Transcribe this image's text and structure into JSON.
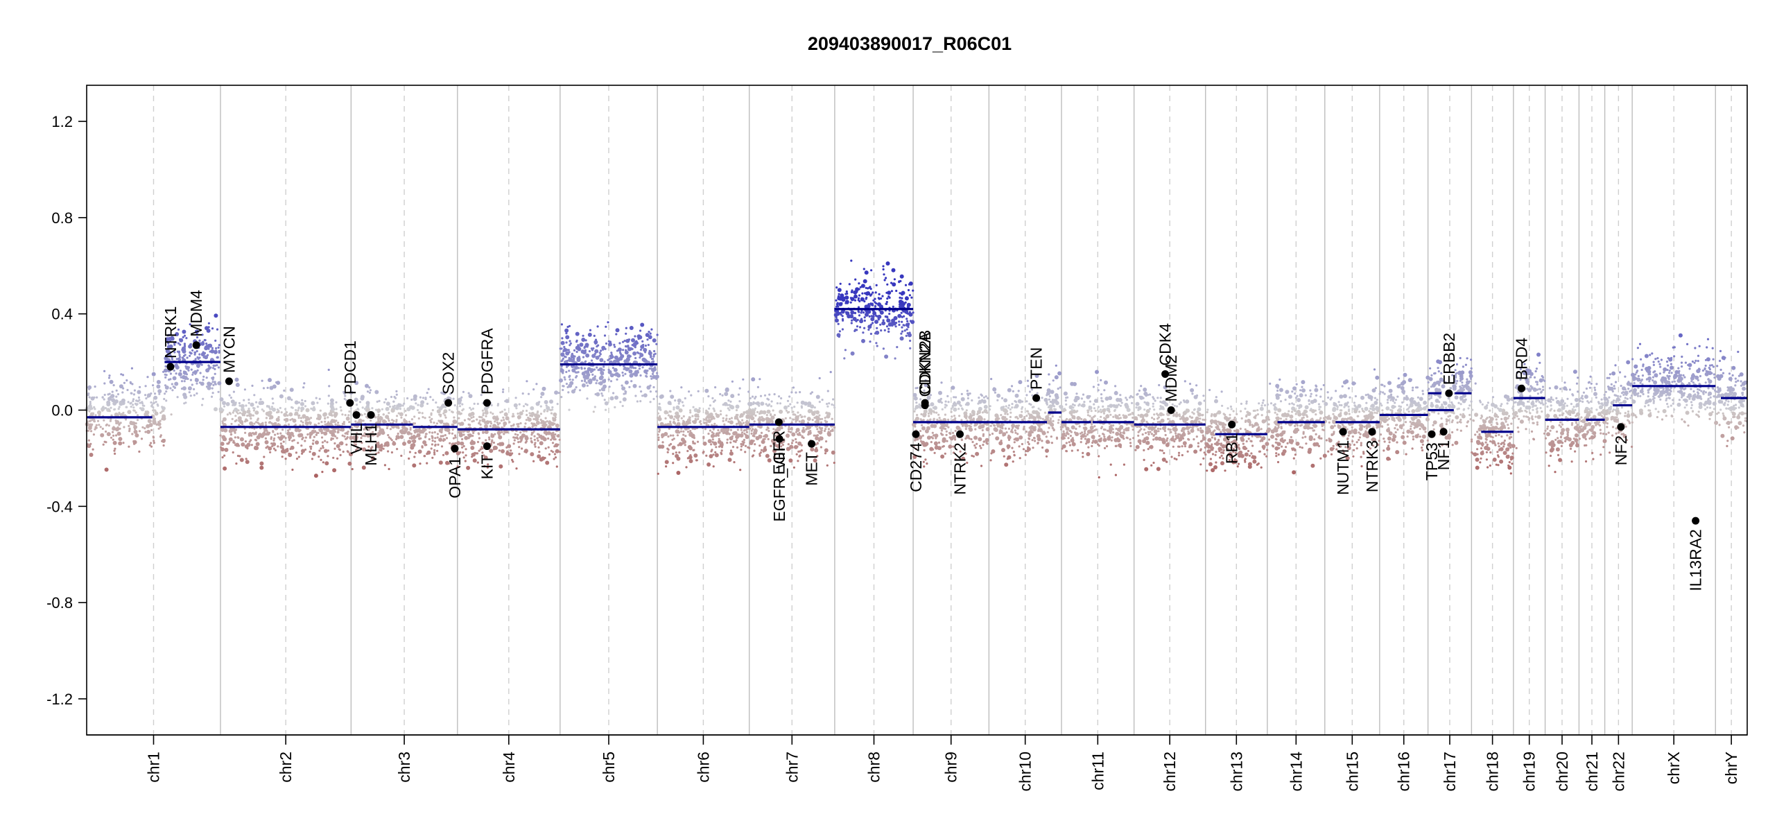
{
  "chart_data": {
    "type": "scatter",
    "title": "209403890017_R06C01",
    "xlabel": "",
    "ylabel": "",
    "ylim": [
      -1.35,
      1.35
    ],
    "yticks": [
      -1.2,
      -0.8,
      -0.4,
      0.0,
      0.4,
      0.8,
      1.2
    ],
    "ytick_labels": [
      "-1.2",
      "-0.8",
      "-0.4",
      "0.0",
      "0.4",
      "0.8",
      "1.2"
    ],
    "chromosomes": [
      {
        "name": "chr1",
        "size": 249
      },
      {
        "name": "chr2",
        "size": 243
      },
      {
        "name": "chr3",
        "size": 198
      },
      {
        "name": "chr4",
        "size": 191
      },
      {
        "name": "chr5",
        "size": 181
      },
      {
        "name": "chr6",
        "size": 171
      },
      {
        "name": "chr7",
        "size": 159
      },
      {
        "name": "chr8",
        "size": 146
      },
      {
        "name": "chr9",
        "size": 141
      },
      {
        "name": "chr10",
        "size": 135
      },
      {
        "name": "chr11",
        "size": 135
      },
      {
        "name": "chr12",
        "size": 133
      },
      {
        "name": "chr13",
        "size": 115
      },
      {
        "name": "chr14",
        "size": 107
      },
      {
        "name": "chr15",
        "size": 102
      },
      {
        "name": "chr16",
        "size": 90
      },
      {
        "name": "chr17",
        "size": 81
      },
      {
        "name": "chr18",
        "size": 78
      },
      {
        "name": "chr19",
        "size": 59
      },
      {
        "name": "chr20",
        "size": 63
      },
      {
        "name": "chr21",
        "size": 48
      },
      {
        "name": "chr22",
        "size": 51
      },
      {
        "name": "chrX",
        "size": 155
      },
      {
        "name": "chrY",
        "size": 59
      }
    ],
    "segments": [
      {
        "chr": "chr1",
        "start": 0,
        "end": 122,
        "value": -0.03
      },
      {
        "chr": "chr1",
        "start": 145,
        "end": 249,
        "value": 0.2
      },
      {
        "chr": "chr2",
        "start": 0,
        "end": 243,
        "value": -0.07
      },
      {
        "chr": "chr3",
        "start": 0,
        "end": 115,
        "value": -0.06
      },
      {
        "chr": "chr3",
        "start": 115,
        "end": 198,
        "value": -0.07
      },
      {
        "chr": "chr4",
        "start": 0,
        "end": 191,
        "value": -0.08
      },
      {
        "chr": "chr5",
        "start": 0,
        "end": 181,
        "value": 0.19
      },
      {
        "chr": "chr6",
        "start": 0,
        "end": 171,
        "value": -0.07
      },
      {
        "chr": "chr7",
        "start": 0,
        "end": 159,
        "value": -0.06
      },
      {
        "chr": "chr8",
        "start": 0,
        "end": 146,
        "value": 0.42
      },
      {
        "chr": "chr9",
        "start": 0,
        "end": 141,
        "value": -0.05
      },
      {
        "chr": "chr10",
        "start": 0,
        "end": 108,
        "value": -0.05
      },
      {
        "chr": "chr10",
        "start": 110,
        "end": 135,
        "value": -0.01
      },
      {
        "chr": "chr11",
        "start": 0,
        "end": 55,
        "value": -0.05
      },
      {
        "chr": "chr11",
        "start": 58,
        "end": 135,
        "value": -0.05
      },
      {
        "chr": "chr12",
        "start": 0,
        "end": 133,
        "value": -0.06
      },
      {
        "chr": "chr13",
        "start": 18,
        "end": 115,
        "value": -0.1
      },
      {
        "chr": "chr14",
        "start": 19,
        "end": 107,
        "value": -0.05
      },
      {
        "chr": "chr15",
        "start": 20,
        "end": 102,
        "value": -0.05
      },
      {
        "chr": "chr16",
        "start": 0,
        "end": 90,
        "value": -0.02
      },
      {
        "chr": "chr17",
        "start": 0,
        "end": 25,
        "value": 0.07
      },
      {
        "chr": "chr17",
        "start": 0,
        "end": 48,
        "value": 0.0
      },
      {
        "chr": "chr17",
        "start": 50,
        "end": 81,
        "value": 0.07
      },
      {
        "chr": "chr18",
        "start": 18,
        "end": 78,
        "value": -0.09
      },
      {
        "chr": "chr19",
        "start": 0,
        "end": 59,
        "value": 0.05
      },
      {
        "chr": "chr20",
        "start": 0,
        "end": 63,
        "value": -0.04
      },
      {
        "chr": "chr21",
        "start": 13,
        "end": 48,
        "value": -0.04
      },
      {
        "chr": "chr22",
        "start": 15,
        "end": 51,
        "value": 0.02
      },
      {
        "chr": "chrX",
        "start": 0,
        "end": 155,
        "value": 0.1
      },
      {
        "chr": "chrY",
        "start": 10,
        "end": 59,
        "value": 0.05
      }
    ],
    "genes": [
      {
        "name": "NTRK1",
        "chr": "chr1",
        "pos": 156,
        "value": 0.18,
        "label_side": "above"
      },
      {
        "name": "MDM4",
        "chr": "chr1",
        "pos": 204,
        "value": 0.27,
        "label_side": "above"
      },
      {
        "name": "MYCN",
        "chr": "chr2",
        "pos": 16,
        "value": 0.12,
        "label_side": "above"
      },
      {
        "name": "PDCD1",
        "chr": "chr2",
        "pos": 241,
        "value": 0.03,
        "label_side": "above"
      },
      {
        "name": "VHL",
        "chr": "chr3",
        "pos": 10,
        "value": -0.02,
        "label_side": "below"
      },
      {
        "name": "MLH1",
        "chr": "chr3",
        "pos": 37,
        "value": -0.02,
        "label_side": "below"
      },
      {
        "name": "SOX2",
        "chr": "chr3",
        "pos": 181,
        "value": 0.03,
        "label_side": "above"
      },
      {
        "name": "OPA1",
        "chr": "chr3",
        "pos": 193,
        "value": -0.16,
        "label_side": "below"
      },
      {
        "name": "PDGFRA",
        "chr": "chr4",
        "pos": 55,
        "value": 0.03,
        "label_side": "above"
      },
      {
        "name": "KIT",
        "chr": "chr4",
        "pos": 55,
        "value": -0.15,
        "label_side": "below"
      },
      {
        "name": "EGFR",
        "chr": "chr7",
        "pos": 55,
        "value": -0.05,
        "label_side": "below"
      },
      {
        "name": "EGFR_vIII",
        "chr": "chr7",
        "pos": 56,
        "value": -0.12,
        "label_side": "below"
      },
      {
        "name": "MET",
        "chr": "chr7",
        "pos": 116,
        "value": -0.14,
        "label_side": "below"
      },
      {
        "name": "CDKN2A",
        "chr": "chr9",
        "pos": 22,
        "value": 0.02,
        "label_side": "above"
      },
      {
        "name": "CDKN2B",
        "chr": "chr9",
        "pos": 22,
        "value": 0.03,
        "label_side": "above"
      },
      {
        "name": "CD274",
        "chr": "chr9",
        "pos": 5,
        "value": -0.1,
        "label_side": "below"
      },
      {
        "name": "NTRK2",
        "chr": "chr9",
        "pos": 87,
        "value": -0.1,
        "label_side": "below"
      },
      {
        "name": "PTEN",
        "chr": "chr10",
        "pos": 88,
        "value": 0.05,
        "label_side": "above"
      },
      {
        "name": "CDK4",
        "chr": "chr12",
        "pos": 58,
        "value": 0.15,
        "label_side": "above"
      },
      {
        "name": "MDM2",
        "chr": "chr12",
        "pos": 69,
        "value": 0.0,
        "label_side": "above"
      },
      {
        "name": "RB1",
        "chr": "chr13",
        "pos": 49,
        "value": -0.06,
        "label_side": "below"
      },
      {
        "name": "NUTM1",
        "chr": "chr15",
        "pos": 34,
        "value": -0.09,
        "label_side": "below"
      },
      {
        "name": "NTRK3",
        "chr": "chr15",
        "pos": 88,
        "value": -0.09,
        "label_side": "below"
      },
      {
        "name": "TP53",
        "chr": "chr17",
        "pos": 7,
        "value": -0.1,
        "label_side": "below"
      },
      {
        "name": "NF1",
        "chr": "chr17",
        "pos": 29,
        "value": -0.09,
        "label_side": "below"
      },
      {
        "name": "ERBB2",
        "chr": "chr17",
        "pos": 39,
        "value": 0.07,
        "label_side": "above"
      },
      {
        "name": "BRD4",
        "chr": "chr19",
        "pos": 15,
        "value": 0.09,
        "label_side": "above"
      },
      {
        "name": "NF2",
        "chr": "chr22",
        "pos": 30,
        "value": -0.07,
        "label_side": "below"
      },
      {
        "name": "IL13RA2",
        "chr": "chrX",
        "pos": 118,
        "value": -0.46,
        "label_side": "below"
      }
    ]
  }
}
